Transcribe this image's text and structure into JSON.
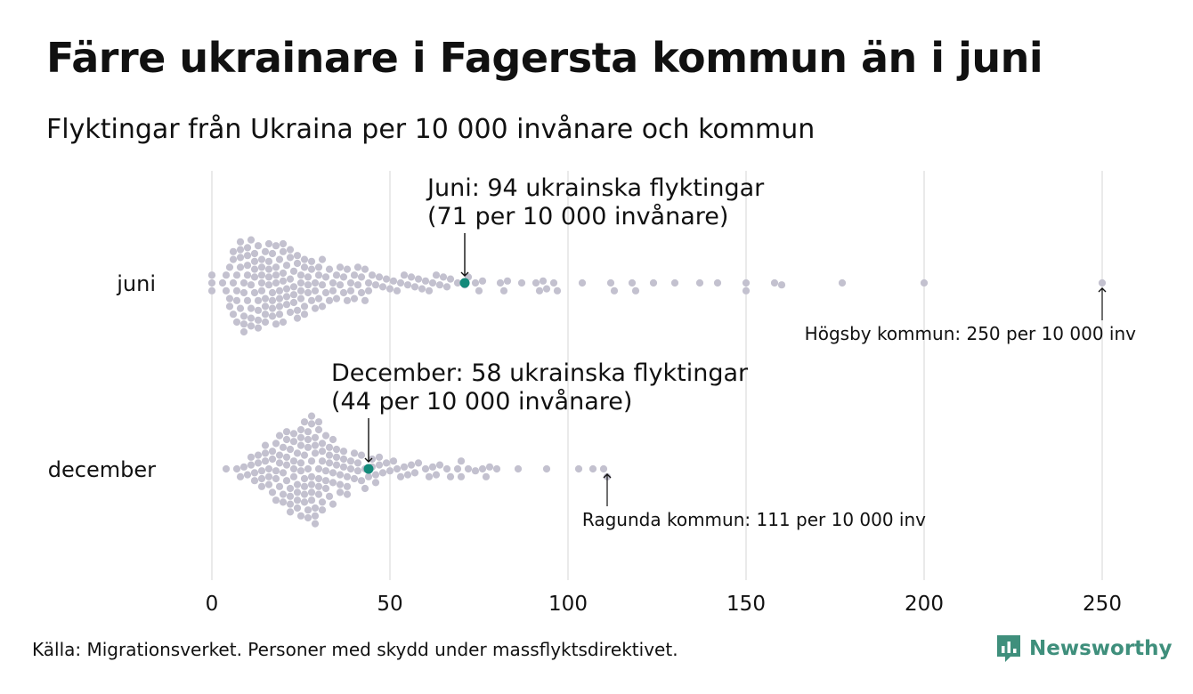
{
  "chart_data": {
    "type": "scatter",
    "variant": "beeswarm",
    "title": "Färre ukrainare i Fagersta kommun än i juni",
    "subtitle": "Flyktingar från Ukraina per 10 000 invånare och kommun",
    "xlim": [
      0,
      250
    ],
    "x_ticks": [
      "0",
      "50",
      "100",
      "150",
      "200",
      "250"
    ],
    "x_tick_values": [
      0,
      50,
      100,
      150,
      200,
      250
    ],
    "grid": "vertical",
    "colors": {
      "dot": "#c3c1cf",
      "highlight": "#138a7a",
      "grid": "#d4d4d4",
      "brand": "#3f8f7c"
    },
    "series": [
      {
        "name": "juni",
        "label": "juni",
        "highlight_value": 71,
        "highlight_text": [
          "Juni: 94 ukrainska flyktingar",
          "(71 per 10 000 invånare)"
        ],
        "max_value": 250,
        "max_text": "Högsby kommun: 250 per 10 000 inv",
        "values": [
          0,
          0,
          0,
          3,
          4,
          4,
          5,
          5,
          5,
          6,
          6,
          6,
          6,
          7,
          7,
          7,
          7,
          8,
          8,
          8,
          8,
          8,
          9,
          9,
          9,
          9,
          9,
          10,
          10,
          10,
          10,
          10,
          11,
          11,
          11,
          11,
          11,
          12,
          12,
          12,
          12,
          12,
          13,
          13,
          13,
          13,
          13,
          14,
          14,
          14,
          14,
          14,
          15,
          15,
          15,
          15,
          15,
          16,
          16,
          16,
          16,
          16,
          17,
          17,
          17,
          17,
          17,
          18,
          18,
          18,
          18,
          18,
          19,
          19,
          19,
          19,
          19,
          20,
          20,
          20,
          20,
          20,
          21,
          21,
          21,
          21,
          22,
          22,
          22,
          22,
          23,
          23,
          23,
          23,
          24,
          24,
          24,
          24,
          25,
          25,
          25,
          25,
          26,
          26,
          26,
          26,
          27,
          27,
          27,
          28,
          28,
          28,
          29,
          29,
          29,
          30,
          30,
          30,
          31,
          31,
          31,
          32,
          32,
          33,
          33,
          34,
          34,
          35,
          35,
          36,
          36,
          37,
          37,
          38,
          38,
          39,
          39,
          40,
          40,
          41,
          41,
          42,
          42,
          43,
          43,
          44,
          44,
          45,
          46,
          47,
          48,
          49,
          50,
          51,
          52,
          53,
          54,
          55,
          56,
          57,
          58,
          59,
          60,
          61,
          62,
          63,
          64,
          65,
          66,
          67,
          69,
          71,
          72,
          74,
          75,
          76,
          81,
          82,
          83,
          87,
          91,
          92,
          93,
          94,
          96,
          97,
          104,
          112,
          113,
          118,
          119,
          124,
          130,
          137,
          142,
          150,
          150,
          158,
          160,
          177,
          200,
          250
        ]
      },
      {
        "name": "december",
        "label": "december",
        "highlight_value": 44,
        "highlight_text": [
          "December: 58 ukrainska flyktingar",
          "(44 per 10 000 invånare)"
        ],
        "max_value": 111,
        "max_text": "Ragunda kommun: 111 per 10 000 inv",
        "values": [
          4,
          7,
          8,
          9,
          10,
          11,
          11,
          12,
          12,
          13,
          13,
          14,
          14,
          14,
          15,
          15,
          15,
          16,
          16,
          16,
          17,
          17,
          17,
          18,
          18,
          18,
          18,
          19,
          19,
          19,
          19,
          20,
          20,
          20,
          20,
          21,
          21,
          21,
          21,
          21,
          22,
          22,
          22,
          22,
          22,
          23,
          23,
          23,
          23,
          23,
          24,
          24,
          24,
          24,
          24,
          25,
          25,
          25,
          25,
          25,
          25,
          26,
          26,
          26,
          26,
          26,
          26,
          27,
          27,
          27,
          27,
          27,
          27,
          28,
          28,
          28,
          28,
          28,
          28,
          28,
          29,
          29,
          29,
          29,
          29,
          29,
          30,
          30,
          30,
          30,
          30,
          30,
          31,
          31,
          31,
          31,
          31,
          32,
          32,
          32,
          32,
          33,
          33,
          33,
          33,
          34,
          34,
          34,
          34,
          35,
          35,
          35,
          36,
          36,
          36,
          37,
          37,
          37,
          38,
          38,
          38,
          39,
          39,
          40,
          40,
          41,
          41,
          42,
          42,
          43,
          43,
          44,
          45,
          45,
          46,
          46,
          47,
          47,
          48,
          49,
          50,
          51,
          52,
          53,
          54,
          55,
          56,
          57,
          58,
          60,
          61,
          62,
          63,
          64,
          66,
          67,
          69,
          70,
          70,
          72,
          74,
          76,
          77,
          78,
          80,
          86,
          94,
          103,
          107,
          110,
          111
        ]
      }
    ]
  },
  "footer": {
    "source": "Källa: Migrationsverket. Personer med skydd under massflyktsdirektivet."
  },
  "brand": {
    "name": "Newsworthy"
  }
}
